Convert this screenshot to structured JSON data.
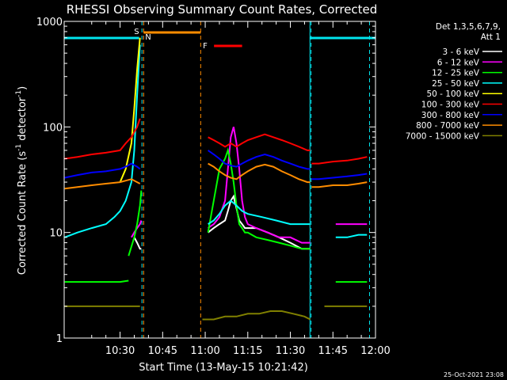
{
  "chart_data": {
    "type": "line",
    "title": "RHESSI Observing Summary Count Rates, Corrected",
    "xlabel": "Start Time (13-May-15 10:21:42)",
    "ylabel_main": "Corrected Count Rate (s",
    "ylabel_sup1": "-1",
    "ylabel_mid": " detector",
    "ylabel_sup2": "-1",
    "ylabel_end": ")",
    "yscale": "log",
    "ylim": [
      1,
      1000
    ],
    "yticks": [
      "1",
      "10",
      "100",
      "1000"
    ],
    "xlim_minutes": [
      10.3,
      120.0
    ],
    "xticks": [
      {
        "minute": 30,
        "label": "10:30"
      },
      {
        "minute": 45,
        "label": "10:45"
      },
      {
        "minute": 60,
        "label": "11:00"
      },
      {
        "minute": 75,
        "label": "11:15"
      },
      {
        "minute": 90,
        "label": "11:30"
      },
      {
        "minute": 105,
        "label": "11:45"
      },
      {
        "minute": 120,
        "label": "12:00"
      }
    ],
    "legend_header": [
      "Det 1,3,5,6,7,9,",
      "Att 1"
    ],
    "date_stamp": "25-Oct-2021 23:08",
    "annotations": {
      "s_label": "S",
      "n_label": "N",
      "f_label": "F",
      "night_minutes": [
        [
          10.3,
          36.7
        ],
        [
          96.9,
          120.0
        ]
      ],
      "saa_minutes": [
        38.3,
        58.4
      ],
      "flare_minutes": [
        63.1,
        73.0
      ],
      "eclipse_marks_minutes": [
        37.7,
        38.3,
        58.4,
        97.3,
        117.9
      ]
    },
    "series": [
      {
        "name": "3 - 6 keV",
        "color": "#ffffff",
        "segments": [
          {
            "x": [
              35,
              36,
              37,
              37.5
            ],
            "y": [
              9,
              8,
              7,
              7
            ]
          },
          {
            "x": [
              61,
              63,
              65,
              67,
              68,
              69,
              70,
              71,
              72,
              73,
              74,
              75,
              78,
              82,
              86,
              90,
              94,
              97
            ],
            "y": [
              10,
              11,
              12,
              13,
              16,
              20,
              22,
              17,
              13,
              12,
              11,
              11,
              11,
              10,
              9,
              8,
              7,
              7
            ]
          }
        ]
      },
      {
        "name": "6 - 12 keV",
        "color": "#ff00ff",
        "segments": [
          {
            "x": [
              34,
              35,
              36,
              37,
              37.5
            ],
            "y": [
              9,
              10,
              11,
              12,
              13
            ]
          },
          {
            "x": [
              61,
              63,
              65,
              67,
              68,
              69,
              70,
              71,
              72,
              73,
              74,
              75,
              78,
              82,
              86,
              90,
              94,
              97
            ],
            "y": [
              11,
              12,
              14,
              20,
              40,
              80,
              100,
              70,
              40,
              20,
              14,
              12,
              11,
              10,
              9,
              9,
              8,
              8
            ]
          },
          {
            "x": [
              106,
              110,
              114,
              117
            ],
            "y": [
              12,
              12,
              12,
              12
            ]
          }
        ]
      },
      {
        "name": "12 - 25 keV",
        "color": "#00ff00",
        "segments": [
          {
            "x": [
              10.5,
              15,
              20,
              25,
              30,
              33
            ],
            "y": [
              3.4,
              3.4,
              3.4,
              3.4,
              3.4,
              3.5
            ]
          },
          {
            "x": [
              33,
              35,
              36,
              37,
              37.5
            ],
            "y": [
              6,
              9,
              12,
              18,
              25
            ]
          },
          {
            "x": [
              61,
              63,
              65,
              67,
              68,
              69,
              70,
              71,
              72,
              73,
              74,
              75,
              78,
              82,
              86,
              90,
              94,
              97
            ],
            "y": [
              10,
              20,
              40,
              50,
              60,
              45,
              30,
              18,
              12,
              11,
              10,
              10,
              9,
              8.5,
              8,
              7.5,
              7,
              7
            ]
          },
          {
            "x": [
              106,
              110,
              114,
              117
            ],
            "y": [
              3.4,
              3.4,
              3.4,
              3.4
            ]
          }
        ]
      },
      {
        "name": "25 - 50 keV",
        "color": "#00ffff",
        "segments": [
          {
            "x": [
              10.5,
              15,
              20,
              25,
              28,
              30,
              32,
              34,
              35,
              36,
              37
            ],
            "y": [
              9,
              10,
              11,
              12,
              14,
              16,
              20,
              30,
              60,
              200,
              600
            ]
          },
          {
            "x": [
              61,
              63,
              65,
              67,
              69,
              71,
              73,
              75,
              80,
              85,
              90,
              95,
              97
            ],
            "y": [
              12,
              13,
              15,
              18,
              20,
              18,
              16,
              15,
              14,
              13,
              12,
              12,
              12
            ]
          },
          {
            "x": [
              106,
              110,
              114,
              117
            ],
            "y": [
              9,
              9,
              9.5,
              9.5
            ]
          }
        ]
      },
      {
        "name": "50 - 100 keV",
        "color": "#ffff00",
        "segments": [
          {
            "x": [
              30,
              32,
              34,
              35,
              36,
              37
            ],
            "y": [
              30,
              40,
              70,
              150,
              350,
              700
            ]
          }
        ]
      },
      {
        "name": "100 - 300 keV",
        "color": "#ff0000",
        "segments": [
          {
            "x": [
              10.5,
              15,
              20,
              25,
              30,
              32,
              34,
              36,
              37
            ],
            "y": [
              50,
              52,
              55,
              57,
              60,
              70,
              80,
              100,
              120
            ]
          },
          {
            "x": [
              61,
              63,
              65,
              67,
              69,
              71,
              73,
              75,
              78,
              81,
              84,
              87,
              90,
              93,
              96,
              97
            ],
            "y": [
              80,
              75,
              70,
              65,
              70,
              65,
              70,
              75,
              80,
              85,
              80,
              75,
              70,
              65,
              60,
              60
            ]
          },
          {
            "x": [
              97.5,
              100,
              105,
              110,
              114,
              117
            ],
            "y": [
              45,
              45,
              47,
              48,
              50,
              52
            ]
          }
        ]
      },
      {
        "name": "300 - 800 keV",
        "color": "#0000ff",
        "segments": [
          {
            "x": [
              10.5,
              15,
              20,
              25,
              30,
              32,
              34,
              36,
              37
            ],
            "y": [
              33,
              35,
              37,
              38,
              40,
              42,
              45,
              42,
              40
            ]
          },
          {
            "x": [
              61,
              63,
              65,
              67,
              69,
              71,
              73,
              75,
              78,
              81,
              84,
              87,
              90,
              93,
              96,
              97
            ],
            "y": [
              60,
              55,
              50,
              45,
              43,
              42,
              45,
              48,
              52,
              55,
              52,
              48,
              45,
              42,
              40,
              40
            ]
          },
          {
            "x": [
              97.5,
              100,
              105,
              110,
              114,
              117
            ],
            "y": [
              32,
              32,
              33,
              34,
              35,
              36
            ]
          }
        ]
      },
      {
        "name": "800 - 7000 keV",
        "color": "#ff8c00",
        "segments": [
          {
            "x": [
              10.5,
              15,
              20,
              25,
              30,
              32,
              34,
              36,
              37
            ],
            "y": [
              26,
              27,
              28,
              29,
              30,
              31,
              32,
              30,
              29
            ]
          },
          {
            "x": [
              61,
              63,
              65,
              67,
              69,
              71,
              73,
              75,
              78,
              81,
              84,
              87,
              90,
              93,
              96,
              97
            ],
            "y": [
              45,
              42,
              38,
              35,
              33,
              32,
              35,
              38,
              42,
              44,
              42,
              38,
              35,
              32,
              30,
              30
            ]
          },
          {
            "x": [
              97.5,
              100,
              105,
              110,
              114,
              117
            ],
            "y": [
              27,
              27,
              28,
              28,
              29,
              30
            ]
          }
        ]
      },
      {
        "name": "7000 - 15000 keV",
        "color": "#808000",
        "segments": [
          {
            "x": [
              10.5,
              14,
              18,
              22,
              26,
              30,
              34,
              37
            ],
            "y": [
              2,
              2,
              2,
              2,
              2,
              2,
              2,
              2
            ]
          },
          {
            "x": [
              59,
              63,
              67,
              71,
              75,
              79,
              83,
              87,
              91,
              95,
              97
            ],
            "y": [
              1.5,
              1.5,
              1.6,
              1.6,
              1.7,
              1.7,
              1.8,
              1.8,
              1.7,
              1.6,
              1.5
            ]
          },
          {
            "x": [
              102,
              106,
              110,
              114,
              117
            ],
            "y": [
              2,
              2,
              2,
              2,
              2
            ]
          }
        ]
      }
    ]
  }
}
